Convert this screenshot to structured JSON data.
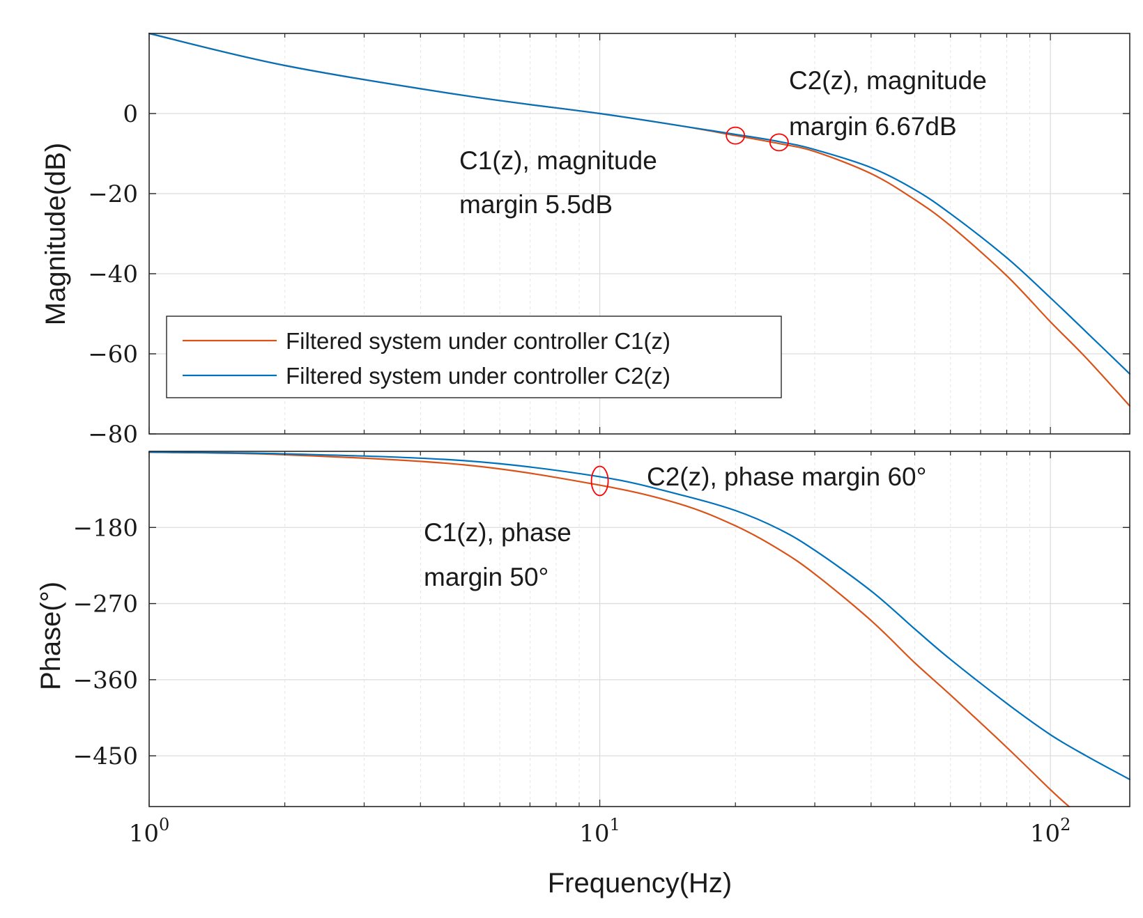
{
  "chart_data": [
    {
      "type": "line",
      "panel": "magnitude",
      "ylabel": "Magnitude(dB)",
      "xlabel": "",
      "xscale": "log",
      "xlim": [
        1,
        150
      ],
      "ylim": [
        -80,
        20
      ],
      "yticks": [
        0,
        -20,
        -40,
        -60,
        -80
      ],
      "ytick_labels": [
        "0",
        "−20",
        "−40",
        "−60",
        "−80"
      ],
      "grid": true,
      "legend": {
        "placement": "lower-left",
        "entries": [
          {
            "label": "Filtered system under controller C1(z)",
            "color": "#d95319"
          },
          {
            "label": "Filtered system under controller C2(z)",
            "color": "#0072bd"
          }
        ]
      },
      "series": [
        {
          "name": "Filtered system under controller C1(z)",
          "color": "#d95319",
          "x": [
            1,
            2,
            5,
            10,
            15,
            20,
            25,
            30,
            40,
            50,
            60,
            80,
            100,
            120,
            150
          ],
          "y": [
            20,
            12,
            4.5,
            0,
            -3,
            -5.5,
            -7.5,
            -9.5,
            -15,
            -21.5,
            -28,
            -40.5,
            -52,
            -61,
            -73
          ]
        },
        {
          "name": "Filtered system under controller C2(z)",
          "color": "#0072bd",
          "x": [
            1,
            2,
            5,
            10,
            15,
            20,
            25,
            30,
            40,
            50,
            60,
            80,
            100,
            120,
            150
          ],
          "y": [
            20,
            12,
            4.5,
            0,
            -3,
            -5.2,
            -7,
            -9,
            -13.5,
            -19,
            -25,
            -36,
            -46,
            -54.5,
            -65
          ]
        }
      ],
      "markers": [
        {
          "x": 20,
          "y": -5.5,
          "shape": "circle",
          "color": "#ff0000"
        },
        {
          "x": 25,
          "y": -7.2,
          "shape": "circle",
          "color": "#ff0000"
        }
      ],
      "annotations": [
        {
          "lines": [
            "C2(z), magnitude",
            "margin 6.67dB"
          ]
        },
        {
          "lines": [
            "C1(z), magnitude",
            "margin 5.5dB"
          ]
        }
      ]
    },
    {
      "type": "line",
      "panel": "phase",
      "ylabel": "Phase(°)",
      "xlabel": "Frequency(Hz)",
      "xscale": "log",
      "xlim": [
        1,
        150
      ],
      "ylim": [
        -510,
        -90
      ],
      "yticks": [
        -180,
        -270,
        -360,
        -450
      ],
      "ytick_labels": [
        "−180",
        "−270",
        "−360",
        "−450"
      ],
      "xtick_labels": [
        {
          "base": "10",
          "exp": "0"
        },
        {
          "base": "10",
          "exp": "1"
        },
        {
          "base": "10",
          "exp": "2"
        }
      ],
      "grid": true,
      "series": [
        {
          "name": "Filtered system under controller C1(z)",
          "color": "#d95319",
          "x": [
            1,
            2,
            5,
            10,
            15,
            20,
            25,
            30,
            40,
            50,
            60,
            80,
            100,
            110
          ],
          "y": [
            -91,
            -94,
            -106,
            -130,
            -152,
            -178,
            -206,
            -235,
            -290,
            -340,
            -378,
            -440,
            -490,
            -510
          ]
        },
        {
          "name": "Filtered system under controller C2(z)",
          "color": "#0072bd",
          "x": [
            1,
            2,
            5,
            10,
            15,
            20,
            25,
            30,
            40,
            50,
            60,
            80,
            100,
            120,
            150
          ],
          "y": [
            -91,
            -93,
            -101,
            -120,
            -141,
            -160,
            -182,
            -207,
            -255,
            -300,
            -336,
            -388,
            -425,
            -450,
            -478
          ]
        }
      ],
      "markers": [
        {
          "x": 10,
          "y": -125,
          "shape": "ellipse",
          "color": "#ff0000"
        }
      ],
      "annotations": [
        {
          "lines": [
            "C2(z), phase margin 60°"
          ]
        },
        {
          "lines": [
            "C1(z), phase",
            "margin 50°"
          ]
        }
      ]
    }
  ]
}
